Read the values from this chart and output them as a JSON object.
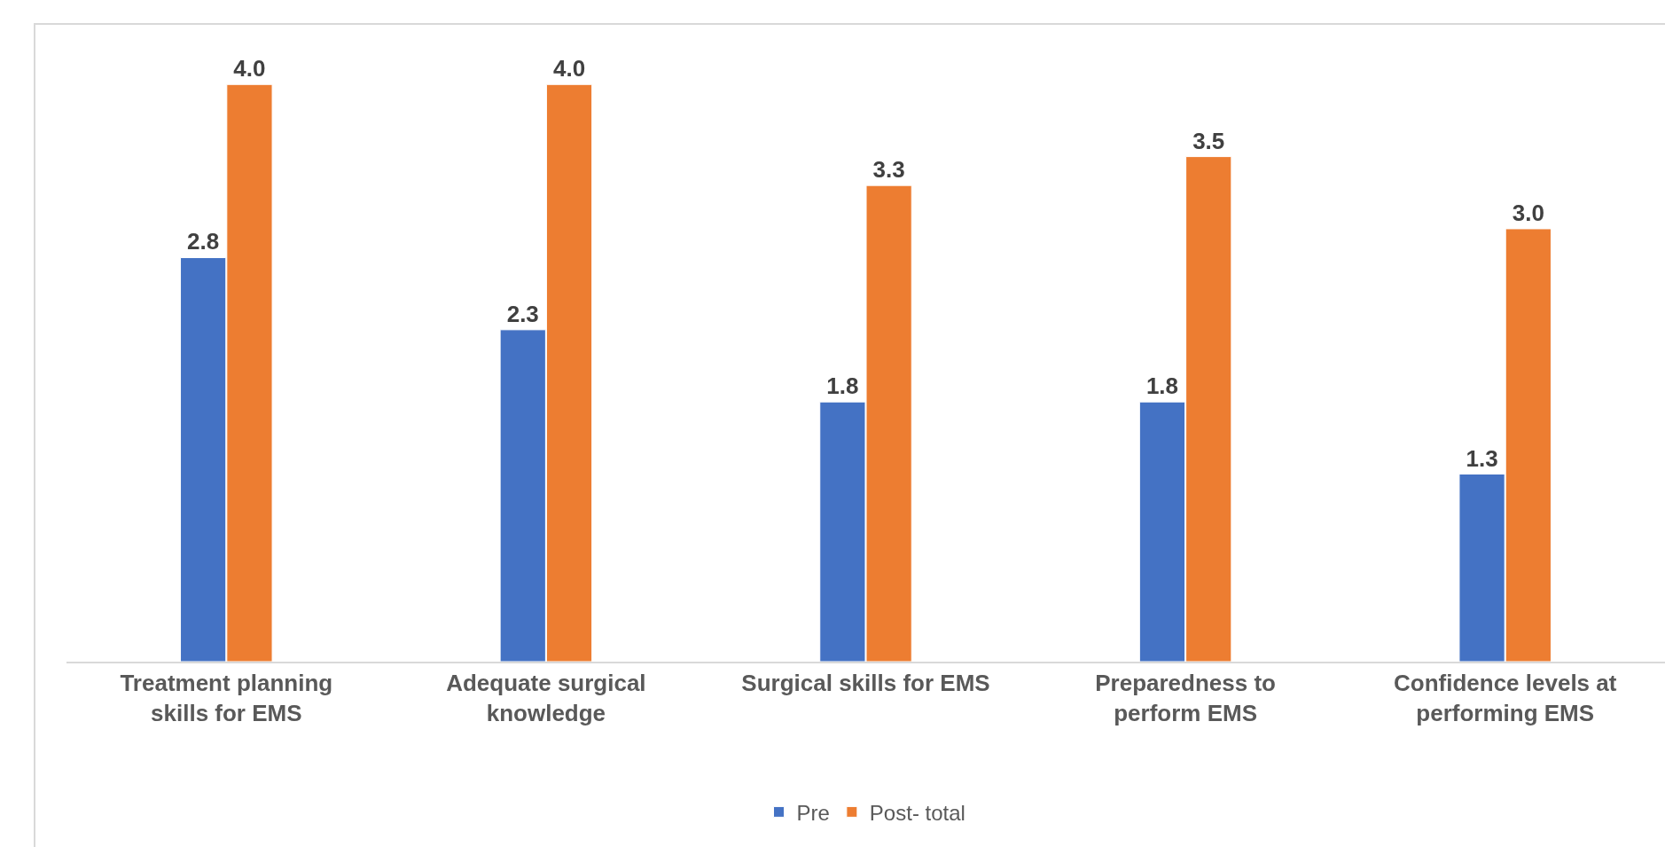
{
  "chart_data": {
    "type": "bar",
    "categories": [
      "Treatment planning skills for EMS",
      "Adequate surgical knowledge",
      "Surgical skills for EMS",
      "Preparedness to perform EMS",
      "Confidence levels at performing EMS"
    ],
    "series": [
      {
        "name": "Pre",
        "color": "#4472c4",
        "values": [
          2.8,
          2.3,
          1.8,
          1.8,
          1.3
        ],
        "value_labels": [
          "2.8",
          "2.3",
          "1.8",
          "1.8",
          "1.3"
        ]
      },
      {
        "name": "Post- total",
        "color": "#ed7d31",
        "values": [
          4.0,
          4.0,
          3.3,
          3.5,
          3.0
        ],
        "value_labels": [
          "4.0",
          "4.0",
          "3.3",
          "3.5",
          "3.0"
        ]
      }
    ],
    "tick_labels": "x",
    "grid": false,
    "legend": "bottom"
  }
}
